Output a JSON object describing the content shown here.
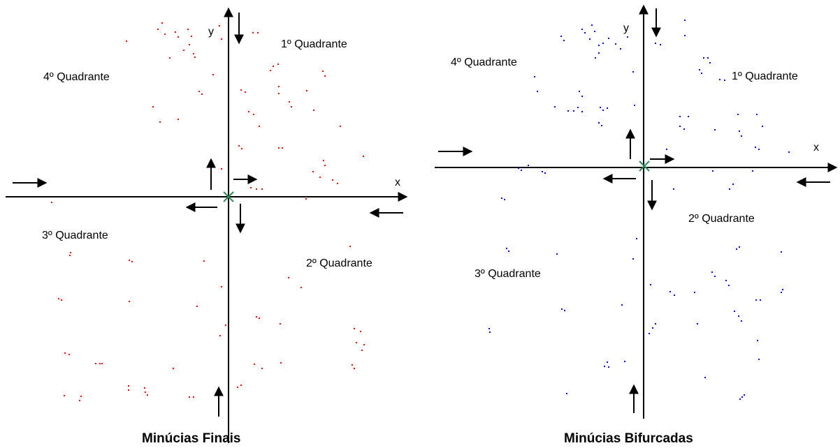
{
  "left_panel": {
    "caption": "Minúcias Finais",
    "y_label": "y",
    "x_label": "x",
    "quadrants": [
      "1º Quadrante",
      "2º Quadrante",
      "3º Quadrante",
      "4º Quadrante"
    ],
    "dot_color": "#ff0000"
  },
  "right_panel": {
    "caption": "Minúcias Bifurcadas",
    "y_label": "y",
    "x_label": "x",
    "quadrants": [
      "1º Quadrante",
      "2º Quadrante",
      "3º Quadrante",
      "4º Quadrante"
    ],
    "dot_color": "#0000ff"
  },
  "colors": {
    "axis": "#000000",
    "origin_marker": "#2e8b57"
  }
}
